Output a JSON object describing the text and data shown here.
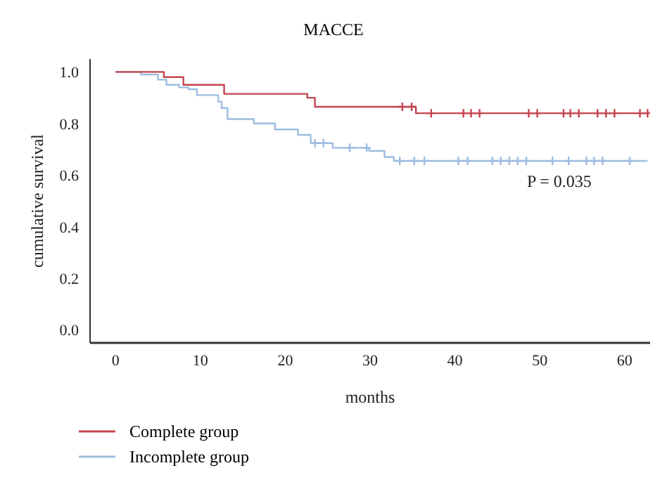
{
  "chart_data": {
    "type": "step",
    "title": "MACCE",
    "xlabel": "months",
    "ylabel": "cumulative survival",
    "annotations": [
      "P = 0.035"
    ],
    "xlim": [
      -3,
      63
    ],
    "xticks": [
      0,
      10,
      20,
      30,
      40,
      50,
      60
    ],
    "ylim": [
      -0.05,
      1.05
    ],
    "yticks": [
      {
        "value": 0,
        "label": "0.0"
      },
      0.2,
      0.4,
      0.6,
      0.8,
      {
        "value": 1,
        "label": "1.0"
      }
    ],
    "grid": false,
    "legend": "bottom left",
    "line_style": "solid",
    "series": [
      {
        "name": "Complete group",
        "color": "#c44450",
        "x": [
          0,
          5.7,
          8,
          12.8,
          22.6,
          23.5,
          35.4,
          62.7
        ],
        "values": [
          1.0,
          0.98,
          0.95,
          0.915,
          0.9,
          0.865,
          0.84,
          0.84
        ]
      },
      {
        "name": "Incomplete group",
        "color": "#9dbde0",
        "x": [
          0,
          3,
          5,
          6,
          7.5,
          8.6,
          9.6,
          12.1,
          12.5,
          13.2,
          16.3,
          18.8,
          21.5,
          23,
          25.6,
          29.9,
          31.7,
          32.8,
          62.7
        ],
        "values": [
          1.0,
          0.99,
          0.97,
          0.95,
          0.94,
          0.933,
          0.91,
          0.885,
          0.86,
          0.817,
          0.8,
          0.777,
          0.756,
          0.724,
          0.706,
          0.694,
          0.67,
          0.655,
          0.655
        ]
      },
      {
        "type": "scatter",
        "marker": "cross",
        "color": "#c44450",
        "x": [
          33.8,
          34.9,
          37.2,
          41,
          41.9,
          42.9,
          48.7,
          49.7,
          52.8,
          53.6,
          54.6,
          56.8,
          57.8,
          58.8,
          61.8,
          62.7
        ],
        "values": [
          0.865,
          0.865,
          0.84,
          0.84,
          0.84,
          0.84,
          0.84,
          0.84,
          0.84,
          0.84,
          0.84,
          0.84,
          0.84,
          0.84,
          0.84,
          0.84
        ]
      },
      {
        "type": "scatter",
        "marker": "cross",
        "color": "#9dbde0",
        "x": [
          23.5,
          24.5,
          27.6,
          29.6,
          33.5,
          35.2,
          36.4,
          40.4,
          41.5,
          44.4,
          45.4,
          46.4,
          47.4,
          48.4,
          51.5,
          53.4,
          55.5,
          56.4,
          57.4,
          60.6
        ],
        "values": [
          0.724,
          0.724,
          0.706,
          0.706,
          0.655,
          0.655,
          0.655,
          0.655,
          0.655,
          0.655,
          0.655,
          0.655,
          0.655,
          0.655,
          0.655,
          0.655,
          0.655,
          0.655,
          0.655,
          0.655
        ]
      }
    ]
  }
}
